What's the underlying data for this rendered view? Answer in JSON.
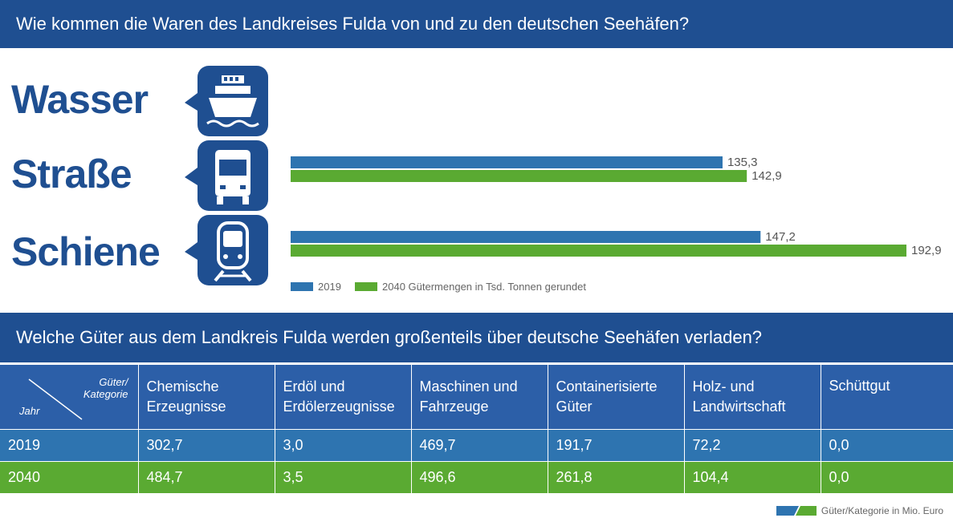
{
  "header": {
    "title": "Wie kommen die Waren des Landkreises Fulda von und zu den deutschen Seehäfen?"
  },
  "modes": [
    {
      "label": "Wasser",
      "icon": "ship-icon"
    },
    {
      "label": "Straße",
      "icon": "truck-icon"
    },
    {
      "label": "Schiene",
      "icon": "train-icon"
    }
  ],
  "chart_data": {
    "type": "bar",
    "orientation": "horizontal",
    "categories": [
      "Wasser",
      "Straße",
      "Schiene"
    ],
    "series": [
      {
        "name": "2019",
        "values": [
          null,
          135.3,
          147.2
        ],
        "labels": [
          "",
          "135,3",
          "147,2"
        ],
        "color": "#2e74b0"
      },
      {
        "name": "2040 Gütermengen in Tsd. Tonnen gerundet",
        "values": [
          null,
          142.9,
          192.9
        ],
        "labels": [
          "",
          "142,9",
          "192,9"
        ],
        "color": "#5aaa32"
      }
    ],
    "xlim": [
      0,
      192.9
    ],
    "legend": [
      "2019",
      "2040 Gütermengen in Tsd. Tonnen gerundet"
    ],
    "legend_placement": "bottom-left"
  },
  "section2": {
    "title": "Welche Güter aus dem Landkreis Fulda werden großenteils über deutsche Seehäfen verladen?"
  },
  "table": {
    "corner_top_line1": "Güter/",
    "corner_top_line2": "Kategorie",
    "corner_bottom": "Jahr",
    "columns": [
      [
        "Chemische",
        "Erzeugnisse"
      ],
      [
        "Erdöl und",
        "Erdölerzeugnisse"
      ],
      [
        "Maschinen und",
        "Fahrzeuge"
      ],
      [
        "Containerisierte",
        "Güter"
      ],
      [
        "Holz- und",
        "Landwirtschaft"
      ],
      [
        "Schüttgut",
        ""
      ]
    ],
    "rows": [
      {
        "year": "2019",
        "values": [
          "302,7",
          "3,0",
          "469,7",
          "191,7",
          "72,2",
          "0,0"
        ]
      },
      {
        "year": "2040",
        "values": [
          "484,7",
          "3,5",
          "496,6",
          "261,8",
          "104,4",
          "0,0"
        ]
      }
    ],
    "note": "Güter/Kategorie in Mio. Euro"
  },
  "colors": {
    "navy": "#1f4f91",
    "blue": "#2e74b0",
    "green": "#5aaa32",
    "header_blue": "#2c5fa8"
  }
}
